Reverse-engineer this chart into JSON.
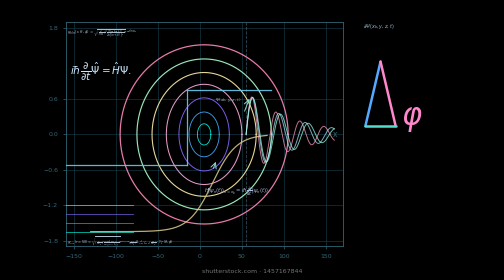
{
  "bg_color": "#000000",
  "grid_color": "#1a4a5a",
  "grid_alpha": 0.7,
  "xlim": [
    -160,
    170
  ],
  "ylim": [
    -1.9,
    1.9
  ],
  "yticks": [
    -1.8,
    -1.2,
    -0.6,
    0,
    0.6,
    1.8
  ],
  "xticks": [
    -150,
    -100,
    -50,
    0,
    50,
    100,
    150
  ],
  "axis_color": "#336677",
  "orbital_colors": [
    "#00ffee",
    "#44aaff",
    "#8866ff",
    "#ffaadd",
    "#ffeeaa",
    "#aaffcc",
    "#ff88bb"
  ],
  "wave_colors": [
    "#ff99bb",
    "#99eebb",
    "#88aaff",
    "#ffddaa"
  ],
  "shutterstock_text": "shutterstock.com · 1457167844"
}
